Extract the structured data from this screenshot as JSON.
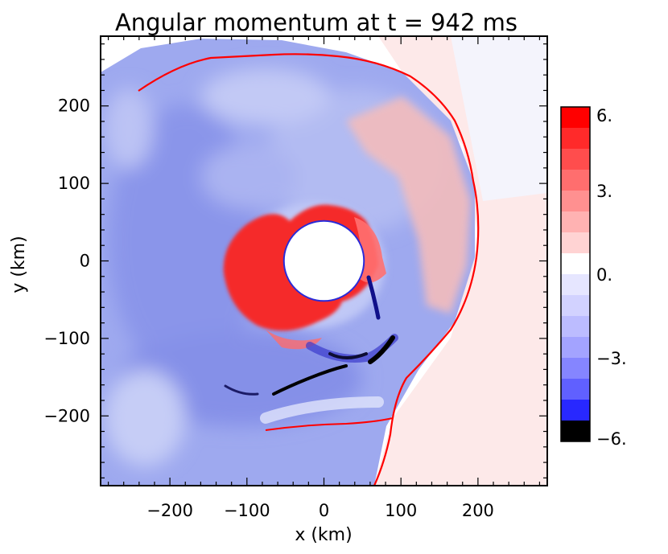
{
  "chart_data": {
    "type": "heatmap",
    "title": "Angular momentum at t = 942 ms",
    "xlabel": "x (km)",
    "ylabel": "y (km)",
    "xlim": [
      -290,
      290
    ],
    "ylim": [
      -290,
      290
    ],
    "x_ticks": [
      -200,
      -100,
      0,
      100,
      200
    ],
    "y_ticks": [
      -200,
      -100,
      0,
      100,
      200
    ],
    "x_tick_labels": [
      "−200",
      "−100",
      "0",
      "100",
      "200"
    ],
    "y_tick_labels": [
      "−200",
      "−100",
      "0",
      "100",
      "200"
    ],
    "grid": false,
    "colorbar": {
      "range": [
        -6,
        6
      ],
      "levels": 16,
      "ticks": [
        6,
        3,
        0,
        -3,
        -6
      ],
      "tick_labels": [
        "6.",
        "3.",
        "0.",
        "−3.",
        "−6."
      ],
      "colors": [
        "#ff0000",
        "#ff2a2a",
        "#ff4d4d",
        "#ff6e6e",
        "#ff9090",
        "#ffb2b2",
        "#ffd3d3",
        "#ffffff",
        "#e6e6ff",
        "#d2d2ff",
        "#bcbcff",
        "#a3a3ff",
        "#8585ff",
        "#6060ff",
        "#2828ff",
        "#000000"
      ]
    },
    "features": {
      "inner_boundary_radius_km": 52,
      "shock_color": "#ff0000"
    }
  }
}
